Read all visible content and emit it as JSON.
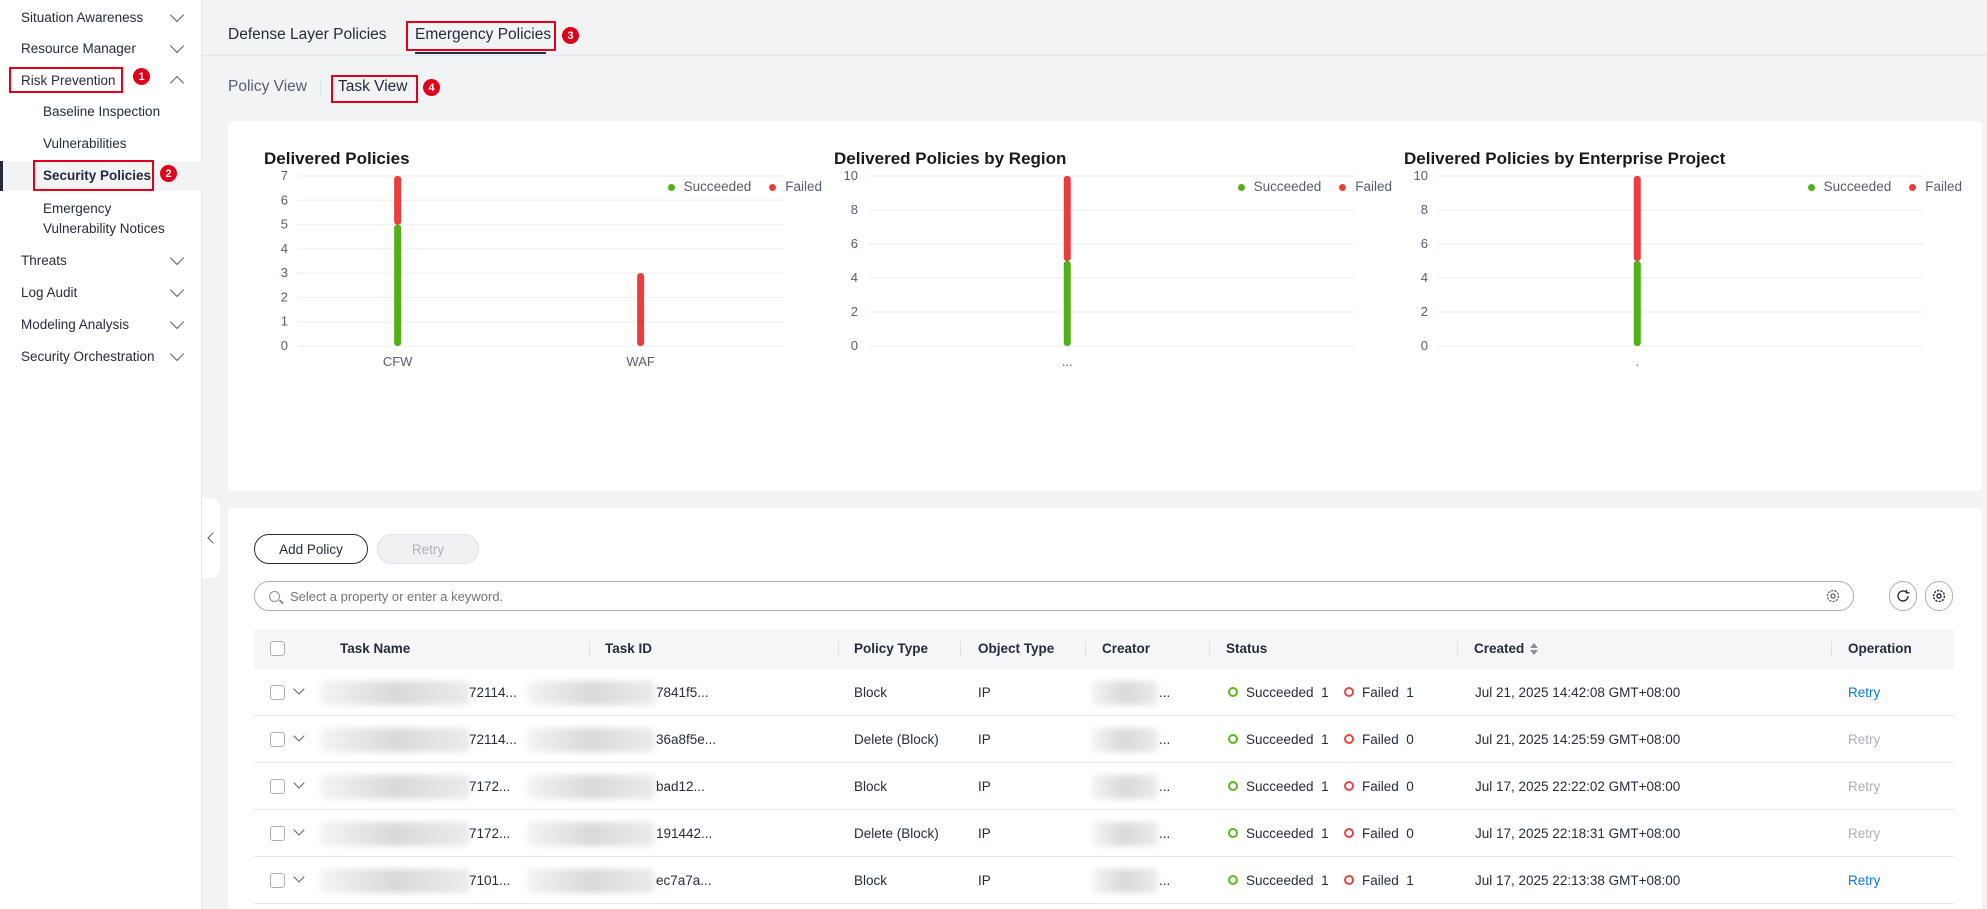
{
  "sidebar": {
    "items": [
      {
        "label": "Situation Awareness",
        "expanded": false
      },
      {
        "label": "Resource Manager",
        "expanded": false
      },
      {
        "label": "Risk Prevention",
        "expanded": true
      },
      {
        "label": "Threats",
        "expanded": false
      },
      {
        "label": "Log Audit",
        "expanded": false
      },
      {
        "label": "Modeling Analysis",
        "expanded": false
      },
      {
        "label": "Security Orchestration",
        "expanded": false
      }
    ],
    "sub_items": [
      {
        "label": "Baseline Inspection"
      },
      {
        "label": "Vulnerabilities"
      },
      {
        "label": "Security Policies",
        "active": true
      },
      {
        "label": "Emergency",
        "label2": "Vulnerability Notices"
      }
    ]
  },
  "callouts": [
    "1",
    "2",
    "3",
    "4"
  ],
  "top_tabs": [
    {
      "label": "Defense Layer Policies",
      "active": false
    },
    {
      "label": "Emergency Policies",
      "active": true
    }
  ],
  "sub_tabs": [
    {
      "label": "Policy View",
      "active": false
    },
    {
      "label": "Task View",
      "active": true
    }
  ],
  "legend": {
    "succeeded": "Succeeded",
    "failed": "Failed"
  },
  "colors": {
    "succeeded": "#52b11a",
    "failed": "#ec3d3d",
    "link": "#0b75e0",
    "callout": "#e0001b"
  },
  "chart_data": [
    {
      "type": "bar",
      "stacked": true,
      "title": "Delivered Policies",
      "categories": [
        "CFW",
        "WAF"
      ],
      "series": [
        {
          "name": "Succeeded",
          "values": [
            5,
            0
          ]
        },
        {
          "name": "Failed",
          "values": [
            2,
            3
          ]
        }
      ],
      "yticks": [
        0,
        1,
        2,
        3,
        4,
        5,
        6,
        7
      ],
      "ylim": [
        0,
        7
      ],
      "legend_position": "top-right",
      "grid": true
    },
    {
      "type": "bar",
      "stacked": true,
      "title": "Delivered Policies by Region",
      "categories": [
        "..."
      ],
      "series": [
        {
          "name": "Succeeded",
          "values": [
            5
          ]
        },
        {
          "name": "Failed",
          "values": [
            5
          ]
        }
      ],
      "yticks": [
        0,
        2,
        4,
        6,
        8,
        10
      ],
      "ylim": [
        0,
        10
      ],
      "legend_position": "top-right",
      "grid": true
    },
    {
      "type": "bar",
      "stacked": true,
      "title": "Delivered Policies by Enterprise Project",
      "categories": [
        "."
      ],
      "series": [
        {
          "name": "Succeeded",
          "values": [
            5
          ]
        },
        {
          "name": "Failed",
          "values": [
            5
          ]
        }
      ],
      "yticks": [
        0,
        2,
        4,
        6,
        8,
        10
      ],
      "ylim": [
        0,
        10
      ],
      "legend_position": "top-right",
      "grid": true
    }
  ],
  "toolbar": {
    "add_label": "Add Policy",
    "retry_label": "Retry",
    "search_placeholder": "Select a property or enter a keyword."
  },
  "table": {
    "columns": [
      "Task Name",
      "Task ID",
      "Policy Type",
      "Object Type",
      "Creator",
      "Status",
      "Created",
      "Operation"
    ],
    "succeeded_label": "Succeeded",
    "failed_label": "Failed",
    "rows": [
      {
        "name": "72114...",
        "id": "7841f5...",
        "policy_type": "Block",
        "object_type": "IP",
        "creator": "...",
        "succeeded": "1",
        "failed": "1",
        "created": "Jul 21, 2025 14:42:08 GMT+08:00",
        "operation": "Retry",
        "op_enabled": true
      },
      {
        "name": "72114...",
        "id": "36a8f5e...",
        "policy_type": "Delete (Block)",
        "object_type": "IP",
        "creator": "...",
        "succeeded": "1",
        "failed": "0",
        "created": "Jul 21, 2025 14:25:59 GMT+08:00",
        "operation": "Retry",
        "op_enabled": false
      },
      {
        "name": "7172...",
        "id": "bad12...",
        "policy_type": "Block",
        "object_type": "IP",
        "creator": "...",
        "succeeded": "1",
        "failed": "0",
        "created": "Jul 17, 2025 22:22:02 GMT+08:00",
        "operation": "Retry",
        "op_enabled": false
      },
      {
        "name": "7172...",
        "id": "191442...",
        "policy_type": "Delete (Block)",
        "object_type": "IP",
        "creator": "...",
        "succeeded": "1",
        "failed": "0",
        "created": "Jul 17, 2025 22:18:31 GMT+08:00",
        "operation": "Retry",
        "op_enabled": false
      },
      {
        "name": "7101...",
        "id": "ec7a7a...",
        "policy_type": "Block",
        "object_type": "IP",
        "creator": "...",
        "succeeded": "1",
        "failed": "1",
        "created": "Jul 17, 2025 22:13:38 GMT+08:00",
        "operation": "Retry",
        "op_enabled": true
      }
    ]
  }
}
